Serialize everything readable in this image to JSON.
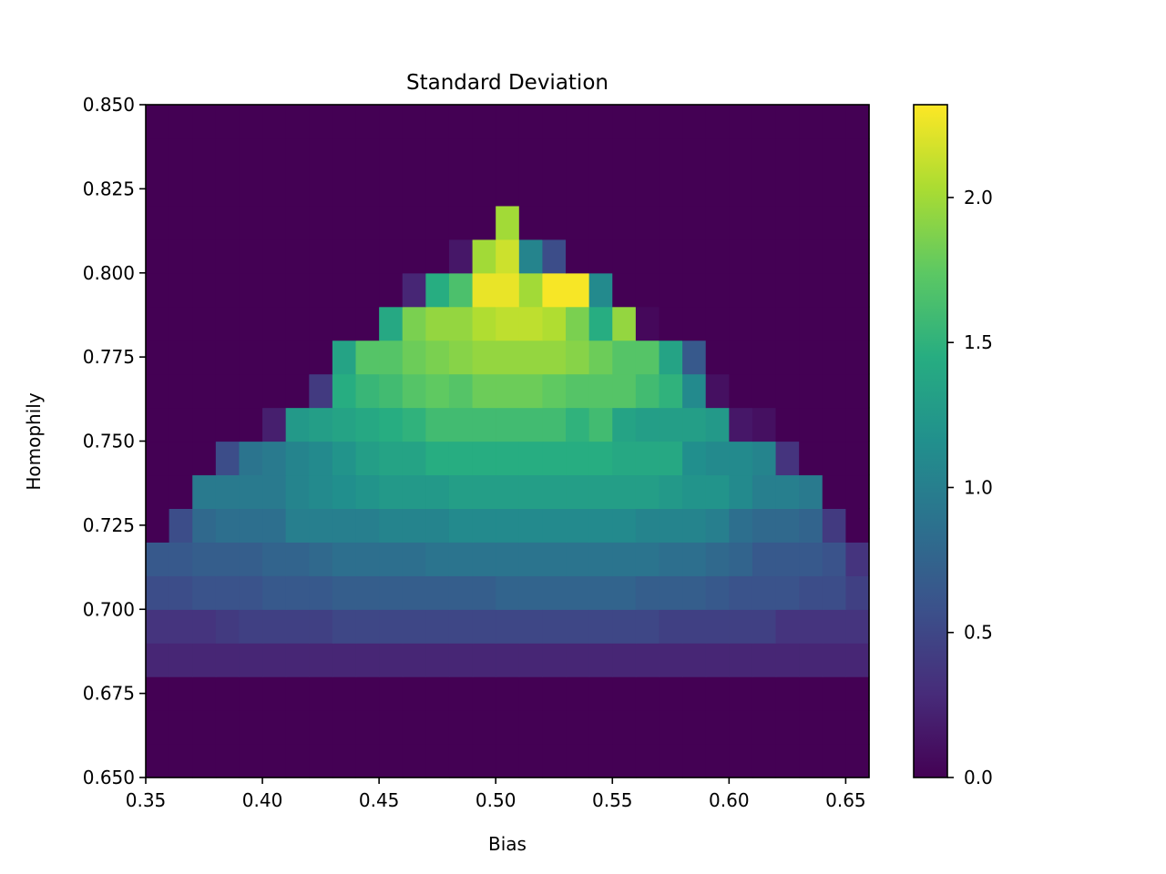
{
  "chart_data": {
    "type": "heatmap",
    "title": "Standard Deviation",
    "xlabel": "Bias",
    "ylabel": "Homophily",
    "xlim": [
      0.35,
      0.66
    ],
    "ylim": [
      0.65,
      0.85
    ],
    "x_edges": [
      0.35,
      0.36,
      0.37,
      0.38,
      0.39,
      0.4,
      0.41,
      0.42,
      0.43,
      0.44,
      0.45,
      0.46,
      0.47,
      0.48,
      0.49,
      0.5,
      0.51,
      0.52,
      0.53,
      0.54,
      0.55,
      0.56,
      0.57,
      0.58,
      0.59,
      0.6,
      0.61,
      0.62,
      0.63,
      0.64,
      0.65,
      0.66
    ],
    "y_edges": [
      0.65,
      0.66,
      0.67,
      0.68,
      0.69,
      0.7,
      0.71,
      0.72,
      0.73,
      0.74,
      0.75,
      0.76,
      0.77,
      0.78,
      0.79,
      0.8,
      0.81,
      0.82,
      0.83,
      0.84,
      0.85
    ],
    "z_rows_bottom_to_top": [
      [
        0,
        0,
        0,
        0,
        0,
        0,
        0,
        0,
        0,
        0,
        0,
        0,
        0,
        0,
        0,
        0,
        0,
        0,
        0,
        0,
        0,
        0,
        0,
        0,
        0,
        0,
        0,
        0,
        0,
        0,
        0
      ],
      [
        0,
        0,
        0,
        0,
        0,
        0,
        0,
        0,
        0,
        0,
        0,
        0,
        0,
        0,
        0,
        0,
        0,
        0,
        0,
        0,
        0,
        0,
        0,
        0,
        0,
        0,
        0,
        0,
        0,
        0,
        0
      ],
      [
        0,
        0,
        0,
        0,
        0,
        0,
        0,
        0,
        0,
        0,
        0,
        0,
        0,
        0,
        0,
        0,
        0,
        0,
        0,
        0,
        0,
        0,
        0,
        0,
        0,
        0,
        0,
        0,
        0,
        0,
        0
      ],
      [
        0.25,
        0.25,
        0.25,
        0.25,
        0.25,
        0.25,
        0.25,
        0.25,
        0.25,
        0.25,
        0.25,
        0.25,
        0.25,
        0.25,
        0.25,
        0.25,
        0.25,
        0.25,
        0.25,
        0.25,
        0.25,
        0.25,
        0.25,
        0.25,
        0.25,
        0.25,
        0.25,
        0.25,
        0.25,
        0.25,
        0.25
      ],
      [
        0.35,
        0.35,
        0.35,
        0.4,
        0.45,
        0.45,
        0.45,
        0.45,
        0.5,
        0.5,
        0.5,
        0.5,
        0.5,
        0.5,
        0.5,
        0.5,
        0.5,
        0.5,
        0.5,
        0.5,
        0.5,
        0.5,
        0.45,
        0.45,
        0.45,
        0.45,
        0.45,
        0.35,
        0.35,
        0.35,
        0.35
      ],
      [
        0.55,
        0.55,
        0.6,
        0.6,
        0.6,
        0.65,
        0.65,
        0.65,
        0.7,
        0.7,
        0.7,
        0.7,
        0.7,
        0.7,
        0.7,
        0.75,
        0.75,
        0.75,
        0.75,
        0.75,
        0.75,
        0.7,
        0.7,
        0.7,
        0.65,
        0.6,
        0.6,
        0.6,
        0.55,
        0.55,
        0.45
      ],
      [
        0.65,
        0.65,
        0.7,
        0.7,
        0.7,
        0.75,
        0.75,
        0.8,
        0.85,
        0.85,
        0.85,
        0.85,
        0.9,
        0.9,
        0.9,
        0.9,
        0.9,
        0.9,
        0.9,
        0.9,
        0.9,
        0.9,
        0.85,
        0.85,
        0.8,
        0.75,
        0.65,
        0.65,
        0.65,
        0.6,
        0.35
      ],
      [
        0,
        0.55,
        0.8,
        0.85,
        0.85,
        0.85,
        1.0,
        1.0,
        1.0,
        1.0,
        1.05,
        1.05,
        1.05,
        1.1,
        1.1,
        1.1,
        1.1,
        1.1,
        1.1,
        1.1,
        1.1,
        1.05,
        1.05,
        1.05,
        1.0,
        0.85,
        0.8,
        0.8,
        0.75,
        0.4,
        0
      ],
      [
        0,
        0,
        0.95,
        0.95,
        0.95,
        0.95,
        1.05,
        1.1,
        1.15,
        1.2,
        1.25,
        1.25,
        1.25,
        1.3,
        1.3,
        1.3,
        1.3,
        1.3,
        1.3,
        1.3,
        1.3,
        1.3,
        1.25,
        1.2,
        1.2,
        1.1,
        1.0,
        1.0,
        0.95,
        0,
        0
      ],
      [
        0,
        0,
        0,
        0.55,
        0.9,
        0.95,
        1.05,
        1.1,
        1.2,
        1.3,
        1.35,
        1.35,
        1.45,
        1.45,
        1.45,
        1.45,
        1.45,
        1.45,
        1.45,
        1.45,
        1.4,
        1.4,
        1.4,
        1.15,
        1.1,
        1.1,
        1.05,
        0.35,
        0,
        0,
        0
      ],
      [
        0,
        0,
        0,
        0,
        0,
        0.2,
        1.25,
        1.3,
        1.35,
        1.4,
        1.45,
        1.5,
        1.6,
        1.6,
        1.6,
        1.6,
        1.6,
        1.6,
        1.5,
        1.6,
        1.35,
        1.3,
        1.3,
        1.3,
        1.25,
        0.15,
        0.1,
        0,
        0,
        0,
        0
      ],
      [
        0,
        0,
        0,
        0,
        0,
        0,
        0,
        0.4,
        1.45,
        1.55,
        1.6,
        1.7,
        1.75,
        1.7,
        1.8,
        1.8,
        1.8,
        1.75,
        1.7,
        1.7,
        1.7,
        1.6,
        1.5,
        1.1,
        0.1,
        0,
        0,
        0,
        0,
        0,
        0
      ],
      [
        0,
        0,
        0,
        0,
        0,
        0,
        0,
        0,
        1.35,
        1.7,
        1.7,
        1.8,
        1.85,
        1.9,
        1.95,
        1.95,
        1.95,
        1.95,
        1.9,
        1.8,
        1.7,
        1.7,
        1.35,
        0.65,
        0,
        0,
        0,
        0,
        0,
        0,
        0
      ],
      [
        0,
        0,
        0,
        0,
        0,
        0,
        0,
        0,
        0,
        0,
        1.4,
        1.85,
        1.95,
        1.95,
        2.05,
        2.1,
        2.1,
        2.05,
        1.85,
        1.45,
        1.95,
        0.05,
        0,
        0,
        0,
        0,
        0,
        0,
        0,
        0,
        0
      ],
      [
        0,
        0,
        0,
        0,
        0,
        0,
        0,
        0,
        0,
        0,
        0,
        0.25,
        1.45,
        1.65,
        2.25,
        2.25,
        2.0,
        2.3,
        2.3,
        1.1,
        0,
        0,
        0,
        0,
        0,
        0,
        0,
        0,
        0,
        0,
        0
      ],
      [
        0,
        0,
        0,
        0,
        0,
        0,
        0,
        0,
        0,
        0,
        0,
        0,
        0,
        0.15,
        2.0,
        2.15,
        1.05,
        0.55,
        0,
        0,
        0,
        0,
        0,
        0,
        0,
        0,
        0,
        0,
        0,
        0,
        0
      ],
      [
        0,
        0,
        0,
        0,
        0,
        0,
        0,
        0,
        0,
        0,
        0,
        0,
        0,
        0,
        0,
        2.0,
        0,
        0,
        0,
        0,
        0,
        0,
        0,
        0,
        0,
        0,
        0,
        0,
        0,
        0,
        0
      ],
      [
        0,
        0,
        0,
        0,
        0,
        0,
        0,
        0,
        0,
        0,
        0,
        0,
        0,
        0,
        0,
        0,
        0,
        0,
        0,
        0,
        0,
        0,
        0,
        0,
        0,
        0,
        0,
        0,
        0,
        0,
        0
      ],
      [
        0,
        0,
        0,
        0,
        0,
        0,
        0,
        0,
        0,
        0,
        0,
        0,
        0,
        0,
        0,
        0,
        0,
        0,
        0,
        0,
        0,
        0,
        0,
        0,
        0,
        0,
        0,
        0,
        0,
        0,
        0
      ],
      [
        0,
        0,
        0,
        0,
        0,
        0,
        0,
        0,
        0,
        0,
        0,
        0,
        0,
        0,
        0,
        0,
        0,
        0,
        0,
        0,
        0,
        0,
        0,
        0,
        0,
        0,
        0,
        0,
        0,
        0,
        0
      ]
    ],
    "x_ticks": [
      "0.35",
      "0.40",
      "0.45",
      "0.50",
      "0.55",
      "0.60",
      "0.65"
    ],
    "y_ticks": [
      "0.650",
      "0.675",
      "0.700",
      "0.725",
      "0.750",
      "0.775",
      "0.800",
      "0.825",
      "0.850"
    ],
    "colorbar": {
      "colormap": "viridis",
      "range": [
        0,
        2.32
      ],
      "ticks": [
        "0.0",
        "0.5",
        "1.0",
        "1.5",
        "2.0"
      ]
    },
    "grid": false
  }
}
